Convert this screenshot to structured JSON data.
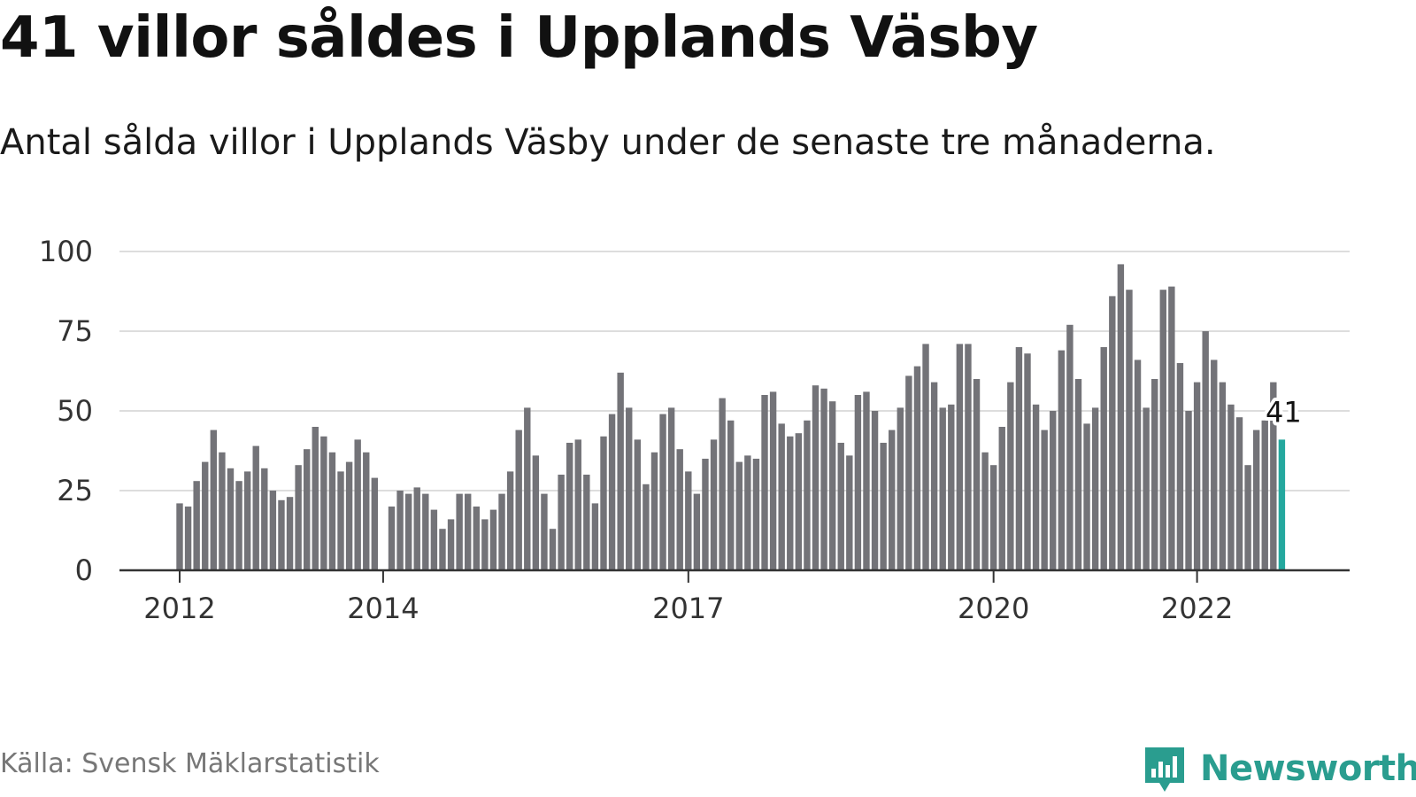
{
  "title": "41 villor såldes i Upplands Väsby",
  "subtitle": "Antal sålda villor i Upplands Väsby under de senaste tre månaderna.",
  "source": "Källa: Svensk Mäklarstatistik",
  "logo": {
    "text": "Newsworthy",
    "icon": "newsworthy-chart-icon"
  },
  "colors": {
    "bar": "#737378",
    "highlight": "#24a89e",
    "grid": "#dddddd",
    "axis": "#333333",
    "brand": "#2a9d8f"
  },
  "chart_data": {
    "type": "bar",
    "x_unit": "month",
    "x_start": "2012-01",
    "x_ticks": [
      {
        "x": "2012-01",
        "label": "2012"
      },
      {
        "x": "2014-01",
        "label": "2014"
      },
      {
        "x": "2017-01",
        "label": "2017"
      },
      {
        "x": "2020-01",
        "label": "2020"
      },
      {
        "x": "2022-01",
        "label": "2022"
      }
    ],
    "ylim": [
      0,
      100
    ],
    "yticks": [
      0,
      25,
      50,
      75,
      100
    ],
    "grid": true,
    "values": [
      21,
      20,
      28,
      34,
      44,
      37,
      32,
      28,
      31,
      39,
      32,
      25,
      22,
      23,
      33,
      38,
      45,
      42,
      37,
      31,
      34,
      41,
      37,
      29,
      null,
      20,
      25,
      24,
      26,
      24,
      19,
      13,
      16,
      24,
      24,
      20,
      16,
      19,
      24,
      31,
      44,
      51,
      36,
      24,
      13,
      30,
      40,
      41,
      30,
      21,
      42,
      49,
      62,
      51,
      41,
      27,
      37,
      49,
      51,
      38,
      31,
      24,
      35,
      41,
      54,
      47,
      34,
      36,
      35,
      55,
      56,
      46,
      42,
      43,
      47,
      58,
      57,
      53,
      40,
      36,
      55,
      56,
      50,
      40,
      44,
      51,
      61,
      64,
      71,
      59,
      51,
      52,
      71,
      71,
      60,
      37,
      33,
      45,
      59,
      70,
      68,
      52,
      44,
      50,
      69,
      77,
      60,
      46,
      51,
      70,
      86,
      96,
      88,
      66,
      51,
      60,
      88,
      89,
      65,
      50,
      59,
      75,
      66,
      59,
      52,
      48,
      33,
      44,
      47,
      59,
      41
    ],
    "highlight": {
      "x": "2022-11",
      "value": 41,
      "label": "41"
    }
  }
}
